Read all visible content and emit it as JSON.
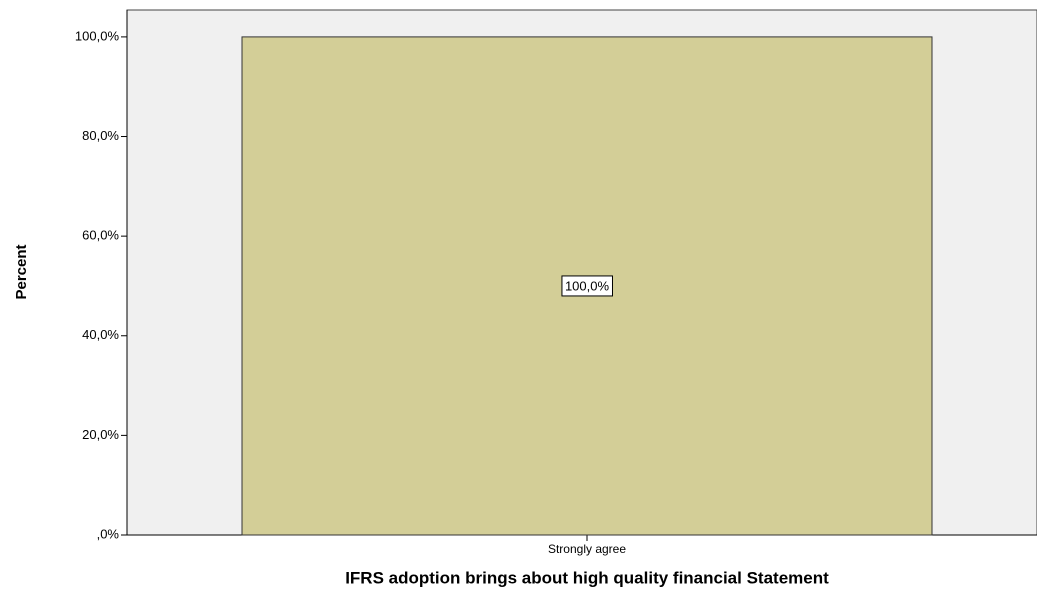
{
  "chart_data": {
    "type": "bar",
    "x_label": "IFRS adoption brings about high quality financial Statement",
    "y_label": "Percent",
    "categories": [
      "Strongly agree"
    ],
    "values": [
      100
    ],
    "value_labels": [
      "100,0%"
    ],
    "color": "#d3ce97",
    "ylim": [
      0,
      105.4
    ],
    "yticks": [
      {
        "value": 0,
        "label": ",0%"
      },
      {
        "value": 20,
        "label": "20,0%"
      },
      {
        "value": 40,
        "label": "40,0%"
      },
      {
        "value": 60,
        "label": "60,0%"
      },
      {
        "value": 80,
        "label": "80,0%"
      },
      {
        "value": 100,
        "label": "100,0%"
      }
    ],
    "grid": false
  }
}
